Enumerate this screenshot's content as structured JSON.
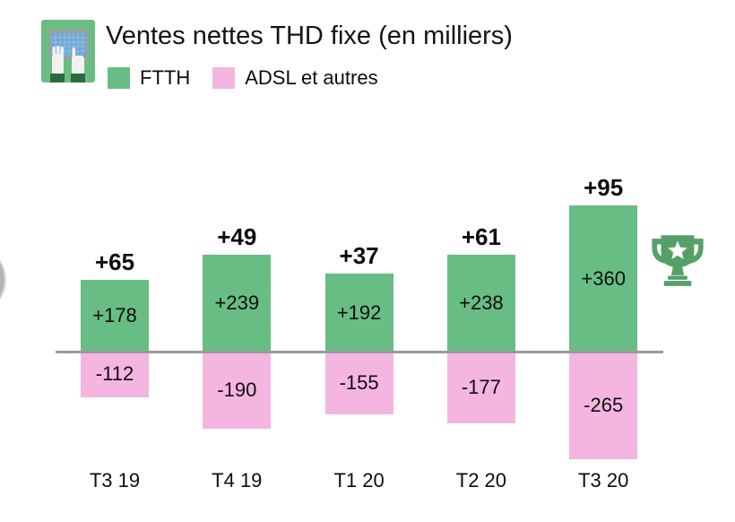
{
  "header": {
    "title": "Ventes nettes THD fixe (en milliers)",
    "logo_icon": "typing-hands-keyboard-icon",
    "legend": [
      {
        "label": "FTTH",
        "color": "#68bd84"
      },
      {
        "label": "ADSL et autres",
        "color": "#f4b6e0"
      }
    ]
  },
  "chart_data": {
    "type": "bar",
    "stacked": true,
    "title": "Ventes nettes THD fixe (en milliers)",
    "unit": "milliers",
    "categories": [
      "T3 19",
      "T4 19",
      "T1 20",
      "T2 20",
      "T3 20"
    ],
    "series": [
      {
        "name": "FTTH",
        "color": "#68bd84",
        "values": [
          178,
          239,
          192,
          238,
          360
        ],
        "labels": [
          "+178",
          "+239",
          "+192",
          "+238",
          "+360"
        ]
      },
      {
        "name": "ADSL et autres",
        "color": "#f4b6e0",
        "values": [
          -112,
          -190,
          -155,
          -177,
          -265
        ],
        "labels": [
          "-112",
          "-190",
          "-155",
          "-177",
          "-265"
        ]
      }
    ],
    "totals": [
      65,
      49,
      37,
      61,
      95
    ],
    "total_labels": [
      "+65",
      "+49",
      "+37",
      "+61",
      "+95"
    ],
    "annotations": [
      {
        "icon": "trophy-icon",
        "category": "T3 20",
        "color": "#55a068",
        "star_color": "#ffffff"
      }
    ],
    "axis": {
      "baseline_value": 0,
      "baseline_color": "#9b9b9b",
      "grid": false,
      "legend_position": "top-left"
    }
  },
  "colors": {
    "background": "#ffffff",
    "text": "#0d0d0d",
    "logo_green": "#6cbd84",
    "logo_sleeves": "#2d6b3f",
    "logo_keyboard": "#6fa8d6",
    "logo_frame": "#9e9e9e"
  }
}
